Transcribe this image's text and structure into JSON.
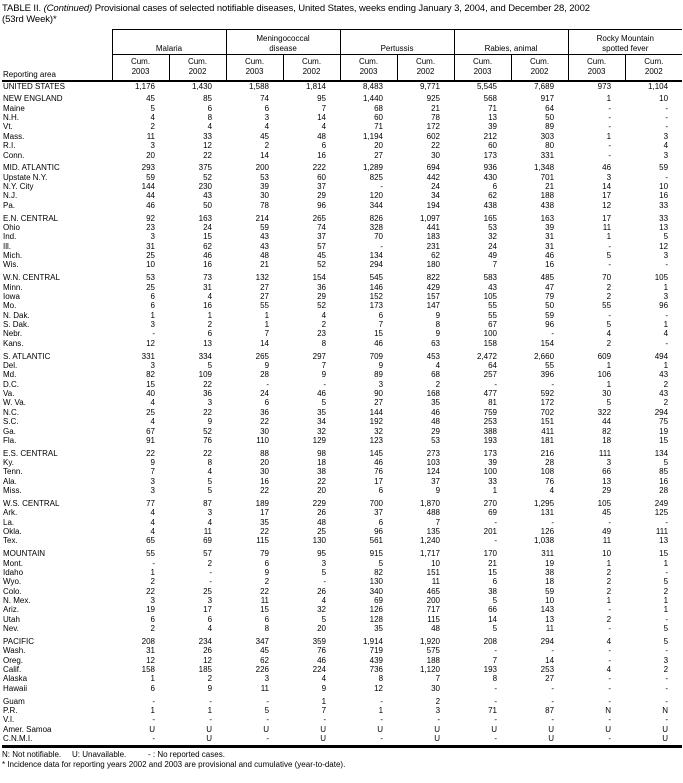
{
  "title": {
    "label": "TABLE II.",
    "continued": "(Continued)",
    "rest": "Provisional cases of selected notifiable diseases, United States, weeks ending January 3, 2004, and December 28, 2002",
    "week": "(53rd Week)*"
  },
  "table": {
    "reporting_area_label": "Reporting area",
    "cum_label": "Cum.",
    "years": [
      "2003",
      "2002"
    ],
    "groups": [
      {
        "id": "malaria",
        "label": "Malaria"
      },
      {
        "id": "meningococcal-disease",
        "label": "Meningococcal\ndisease"
      },
      {
        "id": "pertussis",
        "label": "Pertussis"
      },
      {
        "id": "rabies-animal",
        "label": "Rabies, animal"
      },
      {
        "id": "rocky-mountain-spotted-fever",
        "label": "Rocky Mountain\nspotted fever"
      }
    ],
    "rows": [
      {
        "area": "UNITED STATES",
        "type": "total",
        "v": [
          "1,176",
          "1,430",
          "1,588",
          "1,814",
          "8,483",
          "9,771",
          "5,545",
          "7,689",
          "973",
          "1,104"
        ]
      },
      {
        "area": "NEW ENGLAND",
        "type": "region",
        "gap": true,
        "v": [
          "45",
          "85",
          "74",
          "95",
          "1,440",
          "925",
          "568",
          "917",
          "1",
          "10"
        ]
      },
      {
        "area": "Maine",
        "type": "state",
        "v": [
          "5",
          "6",
          "6",
          "7",
          "68",
          "21",
          "71",
          "64",
          "-",
          "-"
        ]
      },
      {
        "area": "N.H.",
        "type": "state",
        "v": [
          "4",
          "8",
          "3",
          "14",
          "60",
          "78",
          "13",
          "50",
          "-",
          "-"
        ]
      },
      {
        "area": "Vt.",
        "type": "state",
        "v": [
          "2",
          "4",
          "4",
          "4",
          "71",
          "172",
          "39",
          "89",
          "-",
          "-"
        ]
      },
      {
        "area": "Mass.",
        "type": "state",
        "v": [
          "11",
          "33",
          "45",
          "48",
          "1,194",
          "602",
          "212",
          "303",
          "1",
          "3"
        ]
      },
      {
        "area": "R.I.",
        "type": "state",
        "v": [
          "3",
          "12",
          "2",
          "6",
          "20",
          "22",
          "60",
          "80",
          "-",
          "4"
        ]
      },
      {
        "area": "Conn.",
        "type": "state",
        "v": [
          "20",
          "22",
          "14",
          "16",
          "27",
          "30",
          "173",
          "331",
          "-",
          "3"
        ]
      },
      {
        "area": "MID. ATLANTIC",
        "type": "region",
        "gap": true,
        "v": [
          "293",
          "375",
          "200",
          "222",
          "1,289",
          "694",
          "936",
          "1,348",
          "46",
          "59"
        ]
      },
      {
        "area": "Upstate N.Y.",
        "type": "state",
        "v": [
          "59",
          "52",
          "53",
          "60",
          "825",
          "442",
          "430",
          "701",
          "3",
          "-"
        ]
      },
      {
        "area": "N.Y. City",
        "type": "state",
        "v": [
          "144",
          "230",
          "39",
          "37",
          "-",
          "24",
          "6",
          "21",
          "14",
          "10"
        ]
      },
      {
        "area": "N.J.",
        "type": "state",
        "v": [
          "44",
          "43",
          "30",
          "29",
          "120",
          "34",
          "62",
          "188",
          "17",
          "16"
        ]
      },
      {
        "area": "Pa.",
        "type": "state",
        "v": [
          "46",
          "50",
          "78",
          "96",
          "344",
          "194",
          "438",
          "438",
          "12",
          "33"
        ]
      },
      {
        "area": "E.N. CENTRAL",
        "type": "region",
        "gap": true,
        "v": [
          "92",
          "163",
          "214",
          "265",
          "826",
          "1,097",
          "165",
          "163",
          "17",
          "33"
        ]
      },
      {
        "area": "Ohio",
        "type": "state",
        "v": [
          "23",
          "24",
          "59",
          "74",
          "328",
          "441",
          "53",
          "39",
          "11",
          "13"
        ]
      },
      {
        "area": "Ind.",
        "type": "state",
        "v": [
          "3",
          "15",
          "43",
          "37",
          "70",
          "183",
          "32",
          "31",
          "1",
          "5"
        ]
      },
      {
        "area": "Ill.",
        "type": "state",
        "v": [
          "31",
          "62",
          "43",
          "57",
          "-",
          "231",
          "24",
          "31",
          "-",
          "12"
        ]
      },
      {
        "area": "Mich.",
        "type": "state",
        "v": [
          "25",
          "46",
          "48",
          "45",
          "134",
          "62",
          "49",
          "46",
          "5",
          "3"
        ]
      },
      {
        "area": "Wis.",
        "type": "state",
        "v": [
          "10",
          "16",
          "21",
          "52",
          "294",
          "180",
          "7",
          "16",
          "-",
          "-"
        ]
      },
      {
        "area": "W.N. CENTRAL",
        "type": "region",
        "gap": true,
        "v": [
          "53",
          "73",
          "132",
          "154",
          "545",
          "822",
          "583",
          "485",
          "70",
          "105"
        ]
      },
      {
        "area": "Minn.",
        "type": "state",
        "v": [
          "25",
          "31",
          "27",
          "36",
          "146",
          "429",
          "43",
          "47",
          "2",
          "1"
        ]
      },
      {
        "area": "Iowa",
        "type": "state",
        "v": [
          "6",
          "4",
          "27",
          "29",
          "152",
          "157",
          "105",
          "79",
          "2",
          "3"
        ]
      },
      {
        "area": "Mo.",
        "type": "state",
        "v": [
          "6",
          "16",
          "55",
          "52",
          "173",
          "147",
          "55",
          "50",
          "55",
          "96"
        ]
      },
      {
        "area": "N. Dak.",
        "type": "state",
        "v": [
          "1",
          "1",
          "1",
          "4",
          "6",
          "9",
          "55",
          "59",
          "-",
          "-"
        ]
      },
      {
        "area": "S. Dak.",
        "type": "state",
        "v": [
          "3",
          "2",
          "1",
          "2",
          "7",
          "8",
          "67",
          "96",
          "5",
          "1"
        ]
      },
      {
        "area": "Nebr.",
        "type": "state",
        "v": [
          "-",
          "6",
          "7",
          "23",
          "15",
          "9",
          "100",
          "-",
          "4",
          "4"
        ]
      },
      {
        "area": "Kans.",
        "type": "state",
        "v": [
          "12",
          "13",
          "14",
          "8",
          "46",
          "63",
          "158",
          "154",
          "2",
          "-"
        ]
      },
      {
        "area": "S. ATLANTIC",
        "type": "region",
        "gap": true,
        "v": [
          "331",
          "334",
          "265",
          "297",
          "709",
          "453",
          "2,472",
          "2,660",
          "609",
          "494"
        ]
      },
      {
        "area": "Del.",
        "type": "state",
        "v": [
          "3",
          "5",
          "9",
          "7",
          "9",
          "4",
          "64",
          "55",
          "1",
          "1"
        ]
      },
      {
        "area": "Md.",
        "type": "state",
        "v": [
          "82",
          "109",
          "28",
          "9",
          "89",
          "68",
          "257",
          "396",
          "106",
          "43"
        ]
      },
      {
        "area": "D.C.",
        "type": "state",
        "v": [
          "15",
          "22",
          "-",
          "-",
          "3",
          "2",
          "-",
          "-",
          "1",
          "2"
        ]
      },
      {
        "area": "Va.",
        "type": "state",
        "v": [
          "40",
          "36",
          "24",
          "46",
          "90",
          "168",
          "477",
          "592",
          "30",
          "43"
        ]
      },
      {
        "area": "W. Va.",
        "type": "state",
        "v": [
          "4",
          "3",
          "6",
          "5",
          "27",
          "35",
          "81",
          "172",
          "5",
          "2"
        ]
      },
      {
        "area": "N.C.",
        "type": "state",
        "v": [
          "25",
          "22",
          "36",
          "35",
          "144",
          "46",
          "759",
          "702",
          "322",
          "294"
        ]
      },
      {
        "area": "S.C.",
        "type": "state",
        "v": [
          "4",
          "9",
          "22",
          "34",
          "192",
          "48",
          "253",
          "151",
          "44",
          "75"
        ]
      },
      {
        "area": "Ga.",
        "type": "state",
        "v": [
          "67",
          "52",
          "30",
          "32",
          "32",
          "29",
          "388",
          "411",
          "82",
          "19"
        ]
      },
      {
        "area": "Fla.",
        "type": "state",
        "v": [
          "91",
          "76",
          "110",
          "129",
          "123",
          "53",
          "193",
          "181",
          "18",
          "15"
        ]
      },
      {
        "area": "E.S. CENTRAL",
        "type": "region",
        "gap": true,
        "v": [
          "22",
          "22",
          "88",
          "98",
          "145",
          "273",
          "173",
          "216",
          "111",
          "134"
        ]
      },
      {
        "area": "Ky.",
        "type": "state",
        "v": [
          "9",
          "8",
          "20",
          "18",
          "46",
          "103",
          "39",
          "28",
          "3",
          "5"
        ]
      },
      {
        "area": "Tenn.",
        "type": "state",
        "v": [
          "7",
          "4",
          "30",
          "38",
          "76",
          "124",
          "100",
          "108",
          "66",
          "85"
        ]
      },
      {
        "area": "Ala.",
        "type": "state",
        "v": [
          "3",
          "5",
          "16",
          "22",
          "17",
          "37",
          "33",
          "76",
          "13",
          "16"
        ]
      },
      {
        "area": "Miss.",
        "type": "state",
        "v": [
          "3",
          "5",
          "22",
          "20",
          "6",
          "9",
          "1",
          "4",
          "29",
          "28"
        ]
      },
      {
        "area": "W.S. CENTRAL",
        "type": "region",
        "gap": true,
        "v": [
          "77",
          "87",
          "189",
          "229",
          "700",
          "1,870",
          "270",
          "1,295",
          "105",
          "249"
        ]
      },
      {
        "area": "Ark.",
        "type": "state",
        "v": [
          "4",
          "3",
          "17",
          "26",
          "37",
          "488",
          "69",
          "131",
          "45",
          "125"
        ]
      },
      {
        "area": "La.",
        "type": "state",
        "v": [
          "4",
          "4",
          "35",
          "48",
          "6",
          "7",
          "-",
          "-",
          "-",
          "-"
        ]
      },
      {
        "area": "Okla.",
        "type": "state",
        "v": [
          "4",
          "11",
          "22",
          "25",
          "96",
          "135",
          "201",
          "126",
          "49",
          "111"
        ]
      },
      {
        "area": "Tex.",
        "type": "state",
        "v": [
          "65",
          "69",
          "115",
          "130",
          "561",
          "1,240",
          "-",
          "1,038",
          "11",
          "13"
        ]
      },
      {
        "area": "MOUNTAIN",
        "type": "region",
        "gap": true,
        "v": [
          "55",
          "57",
          "79",
          "95",
          "915",
          "1,717",
          "170",
          "311",
          "10",
          "15"
        ]
      },
      {
        "area": "Mont.",
        "type": "state",
        "v": [
          "-",
          "2",
          "6",
          "3",
          "5",
          "10",
          "21",
          "19",
          "1",
          "1"
        ]
      },
      {
        "area": "Idaho",
        "type": "state",
        "v": [
          "1",
          "-",
          "9",
          "5",
          "82",
          "151",
          "15",
          "38",
          "2",
          "-"
        ]
      },
      {
        "area": "Wyo.",
        "type": "state",
        "v": [
          "2",
          "-",
          "2",
          "-",
          "130",
          "11",
          "6",
          "18",
          "2",
          "5"
        ]
      },
      {
        "area": "Colo.",
        "type": "state",
        "v": [
          "22",
          "25",
          "22",
          "26",
          "340",
          "465",
          "38",
          "59",
          "2",
          "2"
        ]
      },
      {
        "area": "N. Mex.",
        "type": "state",
        "v": [
          "3",
          "3",
          "11",
          "4",
          "69",
          "200",
          "5",
          "10",
          "1",
          "1"
        ]
      },
      {
        "area": "Ariz.",
        "type": "state",
        "v": [
          "19",
          "17",
          "15",
          "32",
          "126",
          "717",
          "66",
          "143",
          "-",
          "1"
        ]
      },
      {
        "area": "Utah",
        "type": "state",
        "v": [
          "6",
          "6",
          "6",
          "5",
          "128",
          "115",
          "14",
          "13",
          "2",
          "-"
        ]
      },
      {
        "area": "Nev.",
        "type": "state",
        "v": [
          "2",
          "4",
          "8",
          "20",
          "35",
          "48",
          "5",
          "11",
          "-",
          "5"
        ]
      },
      {
        "area": "PACIFIC",
        "type": "region",
        "gap": true,
        "v": [
          "208",
          "234",
          "347",
          "359",
          "1,914",
          "1,920",
          "208",
          "294",
          "4",
          "5"
        ]
      },
      {
        "area": "Wash.",
        "type": "state",
        "v": [
          "31",
          "26",
          "45",
          "76",
          "719",
          "575",
          "-",
          "-",
          "-",
          "-"
        ]
      },
      {
        "area": "Oreg.",
        "type": "state",
        "v": [
          "12",
          "12",
          "62",
          "46",
          "439",
          "188",
          "7",
          "14",
          "-",
          "3"
        ]
      },
      {
        "area": "Calif.",
        "type": "state",
        "v": [
          "158",
          "185",
          "226",
          "224",
          "736",
          "1,120",
          "193",
          "253",
          "4",
          "2"
        ]
      },
      {
        "area": "Alaska",
        "type": "state",
        "v": [
          "1",
          "2",
          "3",
          "4",
          "8",
          "7",
          "8",
          "27",
          "-",
          "-"
        ]
      },
      {
        "area": "Hawaii",
        "type": "state",
        "v": [
          "6",
          "9",
          "11",
          "9",
          "12",
          "30",
          "-",
          "-",
          "-",
          "-"
        ]
      },
      {
        "area": "Guam",
        "type": "territory",
        "gap": true,
        "v": [
          "-",
          "-",
          "-",
          "1",
          "-",
          "2",
          "-",
          "-",
          "-",
          "-"
        ]
      },
      {
        "area": "P.R.",
        "type": "territory",
        "v": [
          "1",
          "1",
          "5",
          "7",
          "1",
          "3",
          "71",
          "87",
          "N",
          "N"
        ]
      },
      {
        "area": "V.I.",
        "type": "territory",
        "v": [
          "-",
          "-",
          "-",
          "-",
          "-",
          "-",
          "-",
          "-",
          "-",
          "-"
        ]
      },
      {
        "area": "Amer. Samoa",
        "type": "territory",
        "v": [
          "U",
          "U",
          "U",
          "U",
          "U",
          "U",
          "U",
          "U",
          "U",
          "U"
        ]
      },
      {
        "area": "C.N.M.I.",
        "type": "territory",
        "v": [
          "-",
          "U",
          "-",
          "U",
          "-",
          "U",
          "-",
          "U",
          "-",
          "U"
        ]
      }
    ]
  },
  "footnotes": {
    "n": "N: Not notifiable.",
    "u": "U: Unavailable.",
    "dash": "- : No reported cases.",
    "incidence": "* Incidence data for reporting years 2002 and 2003 are provisional and cumulative (year-to-date)."
  }
}
